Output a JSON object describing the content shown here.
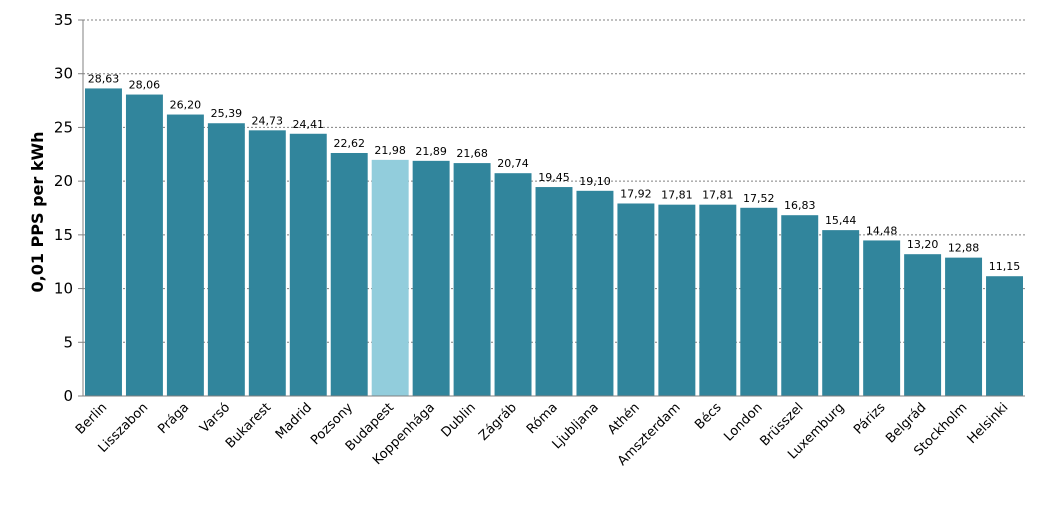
{
  "chart_data": {
    "type": "bar",
    "ylabel": "0,01 PPS per kWh",
    "xlabel": "",
    "ylim": [
      0,
      35
    ],
    "yticks": [
      "0",
      "5",
      "10",
      "15",
      "20",
      "25",
      "30",
      "35"
    ],
    "grid": true,
    "categories": [
      "Berlin",
      "Lisszabon",
      "Prága",
      "Varsó",
      "Bukarest",
      "Madrid",
      "Pozsony",
      "Budapest",
      "Koppenhága",
      "Dublin",
      "Zágráb",
      "Róma",
      "Ljubljana",
      "Athén",
      "Amszterdam",
      "Bécs",
      "London",
      "Brüsszel",
      "Luxemburg",
      "Párizs",
      "Belgrád",
      "Stockholm",
      "Helsinki"
    ],
    "values": [
      28.63,
      28.06,
      26.2,
      25.39,
      24.73,
      24.41,
      22.62,
      21.98,
      21.89,
      21.68,
      20.74,
      19.45,
      19.1,
      17.92,
      17.81,
      17.81,
      17.52,
      16.83,
      15.44,
      14.48,
      13.2,
      12.88,
      11.15
    ],
    "value_labels": [
      "28,63",
      "28,06",
      "26,20",
      "25,39",
      "24,73",
      "24,41",
      "22,62",
      "21,98",
      "21,89",
      "21,68",
      "20,74",
      "19,45",
      "19,10",
      "17,92",
      "17,81",
      "17,81",
      "17,52",
      "16,83",
      "15,44",
      "14,48",
      "13,20",
      "12,88",
      "11,15"
    ],
    "colors": {
      "bar": "#31859c",
      "highlight": "#92cddc"
    },
    "highlight_category": "Budapest"
  }
}
